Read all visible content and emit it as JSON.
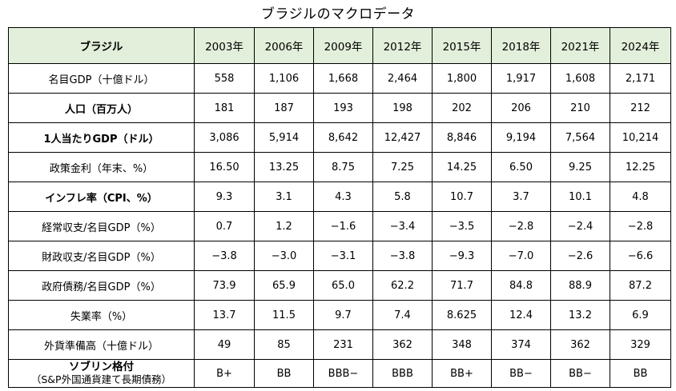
{
  "title": "ブラジルのマクロデータ",
  "table": {
    "header_label": "ブラジル",
    "years": [
      "2003年",
      "2006年",
      "2009年",
      "2012年",
      "2015年",
      "2018年",
      "2021年",
      "2024年"
    ],
    "rows": [
      {
        "label": "名目GDP（十億ドル）",
        "bold": false,
        "values": [
          "558",
          "1,106",
          "1,668",
          "2,464",
          "1,800",
          "1,917",
          "1,608",
          "2,171"
        ]
      },
      {
        "label": "人口（百万人）",
        "bold": true,
        "values": [
          "181",
          "187",
          "193",
          "198",
          "202",
          "206",
          "210",
          "212"
        ]
      },
      {
        "label": "1人当たりGDP（ドル）",
        "bold": true,
        "values": [
          "3,086",
          "5,914",
          "8,642",
          "12,427",
          "8,846",
          "9,194",
          "7,564",
          "10,214"
        ]
      },
      {
        "label": "政策金利（年末、%）",
        "bold": false,
        "values": [
          "16.50",
          "13.25",
          "8.75",
          "7.25",
          "14.25",
          "6.50",
          "9.25",
          "12.25"
        ]
      },
      {
        "label": "インフレ率（CPI、%）",
        "bold": true,
        "values": [
          "9.3",
          "3.1",
          "4.3",
          "5.8",
          "10.7",
          "3.7",
          "10.1",
          "4.8"
        ]
      },
      {
        "label": "経常収支/名目GDP（%）",
        "bold": false,
        "values": [
          "0.7",
          "1.2",
          "−1.6",
          "−3.4",
          "−3.5",
          "−2.8",
          "−2.4",
          "−2.8"
        ]
      },
      {
        "label": "財政収支/名目GDP（%）",
        "bold": false,
        "values": [
          "−3.8",
          "−3.0",
          "−3.1",
          "−3.8",
          "−9.3",
          "−7.0",
          "−2.6",
          "−6.6"
        ]
      },
      {
        "label": "政府債務/名目GDP（%）",
        "bold": false,
        "values": [
          "73.9",
          "65.9",
          "65.0",
          "62.2",
          "71.7",
          "84.8",
          "88.9",
          "87.2"
        ]
      },
      {
        "label": "失業率（%）",
        "bold": false,
        "values": [
          "13.7",
          "11.5",
          "9.7",
          "7.4",
          "8.625",
          "12.4",
          "13.2",
          "6.9"
        ]
      },
      {
        "label": "外貨準備高（十億ドル）",
        "bold": false,
        "values": [
          "49",
          "85",
          "231",
          "362",
          "348",
          "374",
          "362",
          "329"
        ]
      }
    ],
    "rating_row": {
      "label_line1": "ソブリン格付",
      "label_line2": "（S&P外国通貨建て長期債務）",
      "values": [
        "B+",
        "BB",
        "BBB−",
        "BBB",
        "BB+",
        "BB−",
        "BB−",
        "BB"
      ]
    }
  }
}
